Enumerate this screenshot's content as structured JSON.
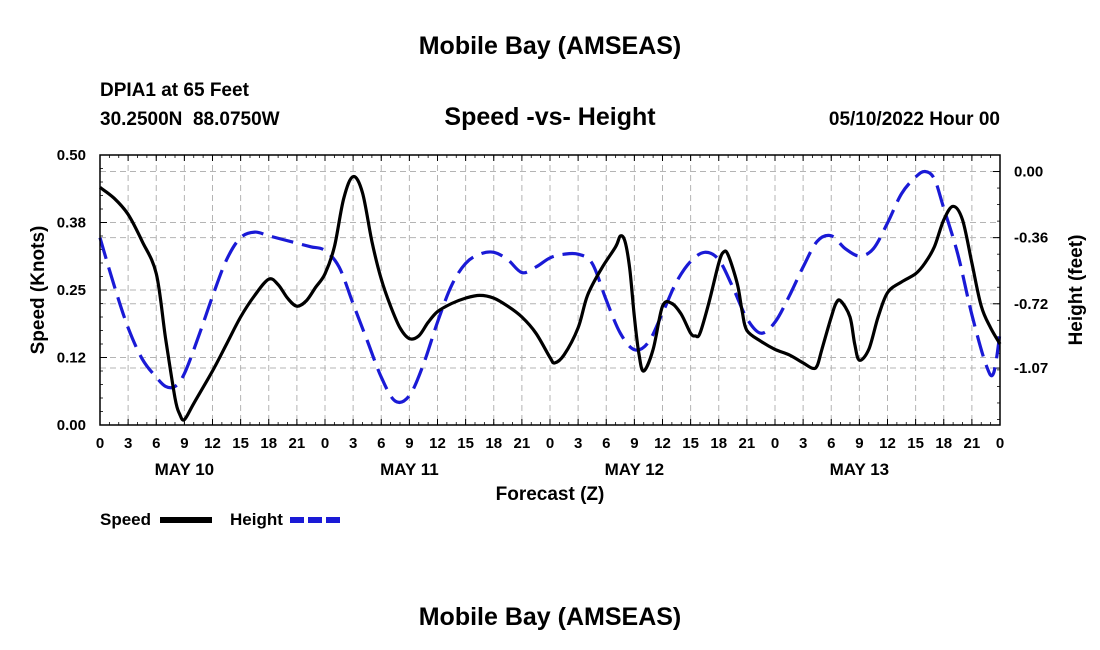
{
  "chart_data": {
    "type": "line",
    "title": "Mobile Bay (AMSEAS)",
    "station": "DPIA1 at 65 Feet",
    "coords": "30.2500N  88.0750W",
    "subtitle": "Speed -vs- Height",
    "datetime": "05/10/2022 Hour 00",
    "xlabel": "Forecast (Z)",
    "ylabel_left": "Speed (Knots)",
    "ylabel_right": "Height (feet)",
    "xlim": [
      0,
      96
    ],
    "ylim_left": [
      0,
      0.5
    ],
    "ylim_right": [
      -1.38,
      0.09
    ],
    "left_ticks": [
      "0.00",
      "0.12",
      "0.25",
      "0.38",
      "0.50"
    ],
    "left_tick_values": [
      0,
      0.125,
      0.25,
      0.375,
      0.5
    ],
    "right_ticks": [
      "0.00",
      "-0.36",
      "-0.72",
      "-1.07"
    ],
    "right_tick_values": [
      0,
      -0.36,
      -0.72,
      -1.07
    ],
    "x_tick_labels": [
      "0",
      "3",
      "6",
      "9",
      "12",
      "15",
      "18",
      "21",
      "0",
      "3",
      "6",
      "9",
      "12",
      "15",
      "18",
      "21",
      "0",
      "3",
      "6",
      "9",
      "12",
      "15",
      "18",
      "21",
      "0",
      "3",
      "6",
      "9",
      "12",
      "15",
      "18",
      "21",
      "0"
    ],
    "day_labels": [
      {
        "label": "MAY 10",
        "hour": 9
      },
      {
        "label": "MAY 11",
        "hour": 33
      },
      {
        "label": "MAY 12",
        "hour": 57
      },
      {
        "label": "MAY 13",
        "hour": 81
      }
    ],
    "legend": [
      "Speed",
      "Height"
    ],
    "footer_title": "Mobile Bay (AMSEAS)",
    "series": [
      {
        "name": "Speed",
        "color": "#000000",
        "style": "solid",
        "axis": "left",
        "points": [
          [
            0,
            0.44
          ],
          [
            1.5,
            0.42
          ],
          [
            3,
            0.39
          ],
          [
            4.5,
            0.34
          ],
          [
            6,
            0.28
          ],
          [
            7,
            0.16
          ],
          [
            8,
            0.05
          ],
          [
            8.5,
            0.02
          ],
          [
            9,
            0.01
          ],
          [
            10,
            0.04
          ],
          [
            12,
            0.1
          ],
          [
            13.5,
            0.15
          ],
          [
            15,
            0.2
          ],
          [
            16.5,
            0.24
          ],
          [
            18,
            0.27
          ],
          [
            19,
            0.26
          ],
          [
            20,
            0.235
          ],
          [
            21,
            0.22
          ],
          [
            22,
            0.23
          ],
          [
            23,
            0.255
          ],
          [
            24,
            0.28
          ],
          [
            25,
            0.33
          ],
          [
            26,
            0.42
          ],
          [
            27,
            0.46
          ],
          [
            28,
            0.43
          ],
          [
            29,
            0.34
          ],
          [
            30,
            0.27
          ],
          [
            31,
            0.22
          ],
          [
            32,
            0.18
          ],
          [
            33,
            0.16
          ],
          [
            34,
            0.165
          ],
          [
            35,
            0.19
          ],
          [
            36,
            0.21
          ],
          [
            37.5,
            0.225
          ],
          [
            39,
            0.235
          ],
          [
            40.5,
            0.24
          ],
          [
            42,
            0.235
          ],
          [
            43.5,
            0.22
          ],
          [
            45,
            0.2
          ],
          [
            46.5,
            0.17
          ],
          [
            48,
            0.125
          ],
          [
            48.5,
            0.115
          ],
          [
            49.5,
            0.13
          ],
          [
            51,
            0.18
          ],
          [
            52,
            0.24
          ],
          [
            53.5,
            0.29
          ],
          [
            55,
            0.33
          ],
          [
            55.5,
            0.35
          ],
          [
            56,
            0.34
          ],
          [
            56.5,
            0.29
          ],
          [
            57,
            0.2
          ],
          [
            57.5,
            0.13
          ],
          [
            58,
            0.1
          ],
          [
            59,
            0.14
          ],
          [
            60,
            0.22
          ],
          [
            61,
            0.225
          ],
          [
            62,
            0.205
          ],
          [
            63,
            0.17
          ],
          [
            63.5,
            0.165
          ],
          [
            64,
            0.17
          ],
          [
            65,
            0.23
          ],
          [
            66,
            0.3
          ],
          [
            66.5,
            0.32
          ],
          [
            67,
            0.315
          ],
          [
            68,
            0.26
          ],
          [
            68.5,
            0.21
          ],
          [
            69,
            0.175
          ],
          [
            70.5,
            0.155
          ],
          [
            72,
            0.14
          ],
          [
            73.5,
            0.13
          ],
          [
            75,
            0.115
          ],
          [
            76,
            0.105
          ],
          [
            76.5,
            0.11
          ],
          [
            77,
            0.14
          ],
          [
            78,
            0.2
          ],
          [
            78.5,
            0.225
          ],
          [
            79,
            0.23
          ],
          [
            80,
            0.2
          ],
          [
            80.5,
            0.15
          ],
          [
            81,
            0.12
          ],
          [
            82,
            0.14
          ],
          [
            83,
            0.2
          ],
          [
            84,
            0.245
          ],
          [
            85.5,
            0.265
          ],
          [
            87,
            0.28
          ],
          [
            88,
            0.3
          ],
          [
            89,
            0.33
          ],
          [
            90,
            0.38
          ],
          [
            91,
            0.405
          ],
          [
            92,
            0.38
          ],
          [
            93,
            0.3
          ],
          [
            94,
            0.22
          ],
          [
            95,
            0.18
          ],
          [
            96,
            0.15
          ]
        ]
      },
      {
        "name": "Height",
        "color": "#1a1ad6",
        "style": "dashed",
        "axis": "right",
        "points": [
          [
            0,
            -0.36
          ],
          [
            1.5,
            -0.62
          ],
          [
            3,
            -0.85
          ],
          [
            4.5,
            -1.02
          ],
          [
            6,
            -1.12
          ],
          [
            7,
            -1.17
          ],
          [
            8,
            -1.17
          ],
          [
            9,
            -1.1
          ],
          [
            10.5,
            -0.9
          ],
          [
            12,
            -0.68
          ],
          [
            13.5,
            -0.48
          ],
          [
            15,
            -0.36
          ],
          [
            16.5,
            -0.33
          ],
          [
            18,
            -0.35
          ],
          [
            19.5,
            -0.37
          ],
          [
            21,
            -0.39
          ],
          [
            22.5,
            -0.41
          ],
          [
            24,
            -0.43
          ],
          [
            25.5,
            -0.52
          ],
          [
            27,
            -0.72
          ],
          [
            28.5,
            -0.92
          ],
          [
            30,
            -1.12
          ],
          [
            31.5,
            -1.25
          ],
          [
            33,
            -1.22
          ],
          [
            34.5,
            -1.05
          ],
          [
            36,
            -0.82
          ],
          [
            37.5,
            -0.62
          ],
          [
            39,
            -0.5
          ],
          [
            40.5,
            -0.45
          ],
          [
            42,
            -0.44
          ],
          [
            43.5,
            -0.48
          ],
          [
            45,
            -0.55
          ],
          [
            46.5,
            -0.52
          ],
          [
            48,
            -0.47
          ],
          [
            49.5,
            -0.45
          ],
          [
            51,
            -0.45
          ],
          [
            52.5,
            -0.5
          ],
          [
            54,
            -0.7
          ],
          [
            55.5,
            -0.88
          ],
          [
            57,
            -0.97
          ],
          [
            58.5,
            -0.93
          ],
          [
            60,
            -0.77
          ],
          [
            61.5,
            -0.6
          ],
          [
            63,
            -0.49
          ],
          [
            64.5,
            -0.44
          ],
          [
            66,
            -0.48
          ],
          [
            67.5,
            -0.63
          ],
          [
            69,
            -0.8
          ],
          [
            70.5,
            -0.88
          ],
          [
            72,
            -0.82
          ],
          [
            73.5,
            -0.68
          ],
          [
            75,
            -0.52
          ],
          [
            76.5,
            -0.38
          ],
          [
            78,
            -0.35
          ],
          [
            79.5,
            -0.42
          ],
          [
            81,
            -0.46
          ],
          [
            82.5,
            -0.42
          ],
          [
            84,
            -0.28
          ],
          [
            85.5,
            -0.12
          ],
          [
            87,
            -0.03
          ],
          [
            88,
            0.0
          ],
          [
            89,
            -0.04
          ],
          [
            90,
            -0.2
          ],
          [
            91.5,
            -0.45
          ],
          [
            93,
            -0.78
          ],
          [
            94.5,
            -1.05
          ],
          [
            95.3,
            -1.1
          ],
          [
            96,
            -0.88
          ]
        ]
      }
    ]
  }
}
